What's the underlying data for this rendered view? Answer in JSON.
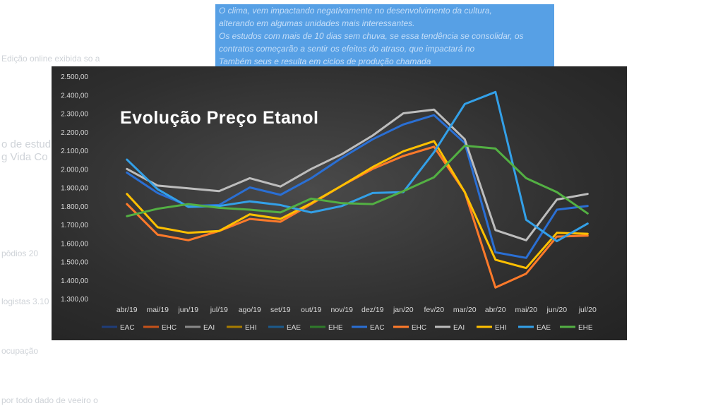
{
  "chart_data": {
    "type": "line",
    "title": "Evolução Preço Etanol",
    "xlabel": "",
    "ylabel": "",
    "categories": [
      "abr/19",
      "mai/19",
      "jun/19",
      "jul/19",
      "ago/19",
      "set/19",
      "out/19",
      "nov/19",
      "dez/19",
      "jan/20",
      "fev/20",
      "mar/20",
      "abr/20",
      "mai/20",
      "jun/20",
      "jul/20"
    ],
    "y_ticks": [
      "1.300,00",
      "1.400,00",
      "1.500,00",
      "1.600,00",
      "1.700,00",
      "1.800,00",
      "1.900,00",
      "2.000,00",
      "2.100,00",
      "2.200,00",
      "2.300,00",
      "2.400,00",
      "2.500,00"
    ],
    "ylim": [
      1300,
      2500
    ],
    "grid": false,
    "legend_position": "bottom",
    "series": [
      {
        "name": "EAC",
        "color": "#1f3d7a",
        "values": [
          1980,
          1870,
          1800,
          1805,
          1900,
          1860,
          1950,
          2060,
          2160,
          2240,
          2290,
          2140,
          1550,
          1520,
          1780,
          1800
        ]
      },
      {
        "name": "EHC",
        "color": "#c5511a",
        "values": [
          1810,
          1645,
          1615,
          1665,
          1730,
          1715,
          1810,
          1910,
          2000,
          2070,
          2120,
          1875,
          1360,
          1435,
          1635,
          1640
        ]
      },
      {
        "name": "EAI",
        "color": "#8a8a8a",
        "values": [
          2000,
          1910,
          1895,
          1880,
          1950,
          1905,
          2000,
          2080,
          2180,
          2300,
          2320,
          2160,
          1670,
          1615,
          1835,
          1865
        ]
      },
      {
        "name": "EHI",
        "color": "#a87c00",
        "values": [
          1865,
          1685,
          1655,
          1665,
          1755,
          1730,
          1815,
          1910,
          2010,
          2095,
          2150,
          1875,
          1510,
          1465,
          1655,
          1650
        ]
      },
      {
        "name": "EAE",
        "color": "#1c5a8c",
        "values": [
          2050,
          1890,
          1795,
          1800,
          1825,
          1805,
          1765,
          1800,
          1870,
          1875,
          2090,
          2350,
          2415,
          1725,
          1610,
          1705
        ]
      },
      {
        "name": "EHE",
        "color": "#2f7a2a",
        "values": [
          1745,
          1785,
          1810,
          1790,
          1780,
          1765,
          1840,
          1815,
          1810,
          1880,
          1955,
          2125,
          2110,
          1950,
          1875,
          1760
        ]
      }
    ],
    "legend": [
      {
        "name": "EAC",
        "color": "#1f3d7a"
      },
      {
        "name": "EHC",
        "color": "#c5511a"
      },
      {
        "name": "EAI",
        "color": "#8a8a8a"
      },
      {
        "name": "EHI",
        "color": "#a87c00"
      },
      {
        "name": "EAE",
        "color": "#1c5a8c"
      },
      {
        "name": "EHE",
        "color": "#2f7a2a"
      },
      {
        "name": "EAC",
        "color": "#2a6fd4"
      },
      {
        "name": "EHC",
        "color": "#ff7a2a"
      },
      {
        "name": "EAI",
        "color": "#bdbdbd"
      },
      {
        "name": "EHI",
        "color": "#ffc000"
      },
      {
        "name": "EAE",
        "color": "#33a0e8"
      },
      {
        "name": "EHE",
        "color": "#53b043"
      }
    ],
    "line_colors": [
      "#2a6fd4",
      "#ff7a2a",
      "#bdbdbd",
      "#ffc000",
      "#33a0e8",
      "#53b043"
    ]
  },
  "background": {
    "highlight_lines": [
      "O clima, vem impactando negativamente no desenvolvimento da cultura,",
      "alterando em algumas unidades mais interessantes.",
      "Os estudos com mais de 10 dias sem chuva, se essa tendência se consolidar, os",
      "contratos começarão a sentir os efeitos do atraso, que impactará no",
      "Também seus e resulta em ciclos de produção chamada"
    ],
    "left_texts": [
      "Edição online exibida so a",
      "o de estud",
      "g Vida Co",
      "pôdios 20",
      "logistas 3.10",
      "ocupação",
      "por todo dado de veeiro o"
    ]
  }
}
